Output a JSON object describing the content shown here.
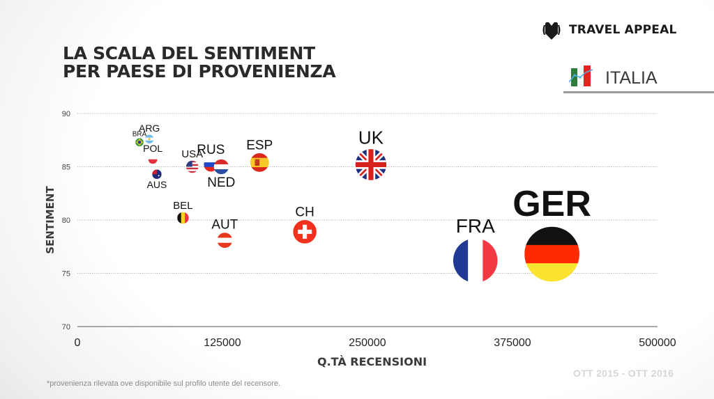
{
  "header": {
    "title_line1": "LA SCALA DEL SENTIMENT",
    "title_line2": "PER PAESE DI PROVENIENZA",
    "brand": "TRAVEL APPEAL",
    "brand_icon": "travel-appeal-logo-icon",
    "country": "ITALIA",
    "country_icon": "italy-flag-trend-icon"
  },
  "footer": {
    "footnote": "*provenienza rilevata ove disponibile sul profilo utente del recensore.",
    "period": "OTT  2015 - OTT 2016"
  },
  "chart_data": {
    "type": "scatter",
    "title": "LA SCALA DEL SENTIMENT PER PAESE DI PROVENIENZA",
    "xlabel": "Q.TÀ RECENSIONI",
    "ylabel": "SENTIMENT",
    "xlim": [
      0,
      500000
    ],
    "ylim": [
      70,
      90
    ],
    "xticks": [
      0,
      125000,
      250000,
      375000,
      500000
    ],
    "xtick_labels": [
      "0",
      "125000",
      "250000",
      "375000",
      "500000"
    ],
    "yticks": [
      70,
      75,
      80,
      85,
      90
    ],
    "ytick_labels": [
      "70",
      "75",
      "80",
      "85",
      "90"
    ],
    "grid": "horizontal-dotted",
    "marker": "country-flag-bubble, size proportional to review count",
    "points": [
      {
        "label": "BRA",
        "flag": "brazil",
        "x": 53500,
        "y": 87.3,
        "label_pos": "above"
      },
      {
        "label": "ARG",
        "flag": "argentina",
        "x": 62000,
        "y": 87.6,
        "label_pos": "above"
      },
      {
        "label": "POL",
        "flag": "poland",
        "x": 65000,
        "y": 85.7,
        "label_pos": "above"
      },
      {
        "label": "AUS",
        "flag": "australia",
        "x": 68500,
        "y": 84.3,
        "label_pos": "below"
      },
      {
        "label": "USA",
        "flag": "usa",
        "x": 99000,
        "y": 85.0,
        "label_pos": "above"
      },
      {
        "label": "RUS",
        "flag": "russia",
        "x": 115000,
        "y": 85.2,
        "label_pos": "above"
      },
      {
        "label": "NED",
        "flag": "netherlands",
        "x": 124000,
        "y": 85.0,
        "label_pos": "below"
      },
      {
        "label": "ESP",
        "flag": "spain",
        "x": 157000,
        "y": 85.4,
        "label_pos": "above"
      },
      {
        "label": "BEL",
        "flag": "belgium",
        "x": 91000,
        "y": 80.2,
        "label_pos": "above"
      },
      {
        "label": "AUT",
        "flag": "austria",
        "x": 127000,
        "y": 78.1,
        "label_pos": "above"
      },
      {
        "label": "CH",
        "flag": "switzerland",
        "x": 196000,
        "y": 78.9,
        "label_pos": "above"
      },
      {
        "label": "UK",
        "flag": "uk",
        "x": 253000,
        "y": 85.2,
        "label_pos": "above"
      },
      {
        "label": "FRA",
        "flag": "france",
        "x": 343000,
        "y": 76.2,
        "label_pos": "above"
      },
      {
        "label": "GER",
        "flag": "germany",
        "x": 409000,
        "y": 76.8,
        "label_pos": "above"
      }
    ]
  }
}
